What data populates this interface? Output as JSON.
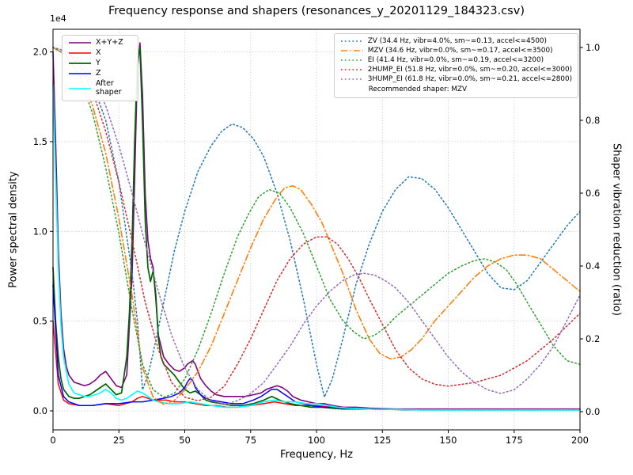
{
  "title": "Frequency response and shapers (resonances_y_20201129_184323.csv)",
  "axes": {
    "x": {
      "label": "Frequency, Hz",
      "lim": [
        0,
        200
      ],
      "tick_values": [
        0,
        25,
        50,
        75,
        100,
        125,
        150,
        175,
        200
      ],
      "tick_labels": [
        "0",
        "25",
        "50",
        "75",
        "100",
        "125",
        "150",
        "175",
        "200"
      ]
    },
    "y_left": {
      "label": "Power spectral density",
      "offset_text": "1e4",
      "lim": [
        -0.106,
        2.126
      ],
      "tick_values": [
        0,
        0.5,
        1,
        1.5,
        2
      ],
      "tick_labels": [
        "0.0",
        "0.5",
        "1.0",
        "1.5",
        "2.0"
      ]
    },
    "y_right": {
      "label": "Shaper vibration reduction (ratio)",
      "lim": [
        -0.05,
        1.05
      ],
      "tick_values": [
        0,
        0.2,
        0.4,
        0.6,
        0.8,
        1
      ],
      "tick_labels": [
        "0.0",
        "0.2",
        "0.4",
        "0.6",
        "0.8",
        "1.0"
      ]
    }
  },
  "legend_note": "Recommended shaper: MZV",
  "chart_data": {
    "type": "line",
    "title": "Frequency response and shapers (resonances_y_20201129_184323.csv)",
    "xlabel": "Frequency, Hz",
    "xlim": [
      0,
      200
    ],
    "left_ylabel": "Power spectral density",
    "left_scale": "1e4",
    "right_ylabel": "Shaper vibration reduction (ratio)",
    "grid": true,
    "series": [
      {
        "name": "X+Y+Z",
        "legend": "psd",
        "axis": "left",
        "color": "#800080",
        "style": "solid",
        "width": 1.6,
        "x": [
          0,
          1,
          2,
          3,
          4,
          5,
          6,
          8,
          10,
          12,
          14,
          16,
          18,
          20,
          22,
          24,
          26,
          28,
          30,
          31,
          32,
          33,
          34,
          35,
          36,
          37,
          38,
          39,
          40,
          42,
          44,
          46,
          48,
          50,
          51,
          52,
          53,
          54,
          55,
          56,
          58,
          60,
          62,
          65,
          68,
          70,
          73,
          76,
          79,
          81,
          83,
          85,
          87,
          89,
          91,
          94,
          97,
          100,
          103,
          106,
          110,
          115,
          120,
          130,
          140,
          160,
          180,
          200
        ],
        "y": [
          2.0,
          1.5,
          0.9,
          0.55,
          0.35,
          0.25,
          0.2,
          0.16,
          0.15,
          0.14,
          0.15,
          0.17,
          0.2,
          0.22,
          0.18,
          0.14,
          0.13,
          0.2,
          0.75,
          1.3,
          1.9,
          2.05,
          1.75,
          1.2,
          0.95,
          0.85,
          0.8,
          0.62,
          0.42,
          0.3,
          0.26,
          0.23,
          0.22,
          0.24,
          0.26,
          0.27,
          0.28,
          0.26,
          0.22,
          0.18,
          0.14,
          0.11,
          0.09,
          0.08,
          0.08,
          0.08,
          0.08,
          0.09,
          0.1,
          0.12,
          0.13,
          0.14,
          0.13,
          0.11,
          0.08,
          0.06,
          0.05,
          0.04,
          0.04,
          0.03,
          0.02,
          0.02,
          0.015,
          0.01,
          0.01,
          0.01,
          0.01,
          0.01
        ]
      },
      {
        "name": "X",
        "legend": "psd",
        "axis": "left",
        "color": "#ff0000",
        "style": "solid",
        "width": 1.5,
        "x": [
          0,
          2,
          4,
          6,
          10,
          15,
          20,
          25,
          30,
          32,
          34,
          36,
          38,
          40,
          43,
          46,
          50,
          54,
          58,
          62,
          66,
          70,
          75,
          80,
          84,
          88,
          92,
          96,
          100,
          105,
          110,
          120,
          140,
          160,
          180,
          200
        ],
        "y": [
          0.5,
          0.15,
          0.06,
          0.04,
          0.03,
          0.03,
          0.04,
          0.03,
          0.05,
          0.07,
          0.08,
          0.07,
          0.06,
          0.06,
          0.06,
          0.05,
          0.05,
          0.04,
          0.03,
          0.03,
          0.02,
          0.02,
          0.03,
          0.04,
          0.05,
          0.04,
          0.03,
          0.03,
          0.03,
          0.02,
          0.015,
          0.01,
          0.005,
          0.005,
          0.005,
          0.005
        ]
      },
      {
        "name": "Y",
        "legend": "psd",
        "axis": "left",
        "color": "#006400",
        "style": "solid",
        "width": 1.7,
        "x": [
          0,
          1,
          2,
          3,
          4,
          6,
          8,
          10,
          12,
          14,
          16,
          18,
          20,
          22,
          24,
          26,
          28,
          29,
          30,
          31,
          32,
          33,
          34,
          35,
          36,
          37,
          38,
          39,
          40,
          41,
          42,
          44,
          46,
          48,
          50,
          52,
          54,
          56,
          58,
          60,
          64,
          68,
          72,
          76,
          80,
          83,
          86,
          90,
          94,
          98,
          102,
          106,
          110,
          120,
          140,
          160,
          180,
          200
        ],
        "y": [
          0.8,
          0.5,
          0.3,
          0.18,
          0.12,
          0.08,
          0.07,
          0.07,
          0.08,
          0.09,
          0.11,
          0.13,
          0.15,
          0.12,
          0.09,
          0.1,
          0.3,
          0.55,
          0.95,
          1.5,
          1.95,
          2.02,
          1.6,
          1.05,
          0.8,
          0.72,
          0.78,
          0.65,
          0.4,
          0.3,
          0.26,
          0.23,
          0.2,
          0.16,
          0.12,
          0.1,
          0.11,
          0.09,
          0.06,
          0.05,
          0.04,
          0.03,
          0.03,
          0.04,
          0.06,
          0.08,
          0.06,
          0.04,
          0.03,
          0.02,
          0.02,
          0.015,
          0.01,
          0.01,
          0.005,
          0.005,
          0.005,
          0.005
        ]
      },
      {
        "name": "Z",
        "legend": "psd",
        "axis": "left",
        "color": "#0000ff",
        "style": "solid",
        "width": 1.5,
        "x": [
          0,
          2,
          4,
          6,
          10,
          15,
          20,
          25,
          30,
          34,
          38,
          42,
          45,
          48,
          50,
          51,
          52,
          53,
          54,
          56,
          58,
          60,
          64,
          68,
          72,
          76,
          79,
          81,
          83,
          85,
          87,
          89,
          92,
          95,
          98,
          102,
          106,
          110,
          120,
          140,
          160,
          180,
          200
        ],
        "y": [
          0.7,
          0.2,
          0.08,
          0.05,
          0.03,
          0.03,
          0.04,
          0.04,
          0.05,
          0.05,
          0.06,
          0.07,
          0.08,
          0.1,
          0.13,
          0.16,
          0.18,
          0.17,
          0.13,
          0.09,
          0.07,
          0.06,
          0.05,
          0.04,
          0.04,
          0.06,
          0.08,
          0.1,
          0.12,
          0.12,
          0.1,
          0.08,
          0.05,
          0.04,
          0.03,
          0.02,
          0.02,
          0.015,
          0.01,
          0.005,
          0.005,
          0.005,
          0.005
        ]
      },
      {
        "name": "After shaper",
        "legend": "psd",
        "axis": "left",
        "color": "#00ffff",
        "style": "solid",
        "width": 1.6,
        "x": [
          0,
          1,
          2,
          3,
          4,
          6,
          8,
          10,
          12,
          14,
          16,
          18,
          20,
          22,
          24,
          26,
          28,
          30,
          32,
          34,
          36,
          38,
          40,
          44,
          48,
          52,
          56,
          60,
          65,
          70,
          75,
          80,
          84,
          88,
          92,
          96,
          100,
          104,
          108,
          112,
          120,
          140,
          160,
          180,
          200
        ],
        "y": [
          1.82,
          1.3,
          0.8,
          0.48,
          0.3,
          0.15,
          0.1,
          0.09,
          0.08,
          0.08,
          0.09,
          0.1,
          0.12,
          0.1,
          0.07,
          0.06,
          0.07,
          0.09,
          0.11,
          0.1,
          0.08,
          0.06,
          0.05,
          0.04,
          0.04,
          0.05,
          0.04,
          0.03,
          0.02,
          0.02,
          0.03,
          0.05,
          0.06,
          0.05,
          0.05,
          0.04,
          0.04,
          0.03,
          0.02,
          0.015,
          0.01,
          0.005,
          0.005,
          0.005,
          0.005
        ]
      },
      {
        "name": "ZV",
        "label": "ZV (34.4 Hz, vibr=4.0%, sm~=0.13, accel<=4500)",
        "legend": "shaper",
        "axis": "right",
        "color": "#1f77b4",
        "style": "dotted",
        "width": 1.5,
        "x": [
          0,
          5,
          10,
          15,
          20,
          25,
          30,
          32,
          34,
          36,
          38,
          42,
          46,
          50,
          55,
          60,
          64,
          68,
          72,
          76,
          80,
          85,
          90,
          95,
          100,
          103,
          106,
          110,
          115,
          120,
          125,
          130,
          135,
          140,
          145,
          150,
          155,
          160,
          165,
          170,
          175,
          180,
          185,
          190,
          195,
          200
        ],
        "y": [
          1.0,
          0.99,
          0.96,
          0.9,
          0.8,
          0.63,
          0.38,
          0.25,
          0.06,
          0.1,
          0.16,
          0.3,
          0.44,
          0.55,
          0.66,
          0.73,
          0.77,
          0.79,
          0.78,
          0.75,
          0.7,
          0.6,
          0.47,
          0.31,
          0.13,
          0.04,
          0.09,
          0.2,
          0.35,
          0.46,
          0.55,
          0.61,
          0.645,
          0.64,
          0.61,
          0.56,
          0.5,
          0.44,
          0.38,
          0.34,
          0.335,
          0.36,
          0.41,
          0.46,
          0.51,
          0.55
        ]
      },
      {
        "name": "MZV",
        "label": "MZV (34.6 Hz, vibr=0.0%, sm~=0.17, accel<=3500)",
        "legend": "shaper",
        "axis": "right",
        "color": "#ff7f0e",
        "style": "dashdot",
        "width": 1.6,
        "x": [
          0,
          5,
          10,
          15,
          20,
          25,
          30,
          34,
          38,
          42,
          46,
          50,
          55,
          60,
          65,
          70,
          75,
          80,
          85,
          88,
          91,
          94,
          98,
          102,
          106,
          110,
          115,
          120,
          124,
          128,
          132,
          136,
          140,
          145,
          150,
          155,
          160,
          165,
          170,
          175,
          180,
          185,
          190,
          195,
          200
        ],
        "y": [
          1.0,
          0.98,
          0.93,
          0.84,
          0.71,
          0.53,
          0.32,
          0.12,
          0.04,
          0.02,
          0.03,
          0.06,
          0.11,
          0.18,
          0.27,
          0.36,
          0.45,
          0.53,
          0.59,
          0.615,
          0.62,
          0.61,
          0.57,
          0.52,
          0.45,
          0.38,
          0.28,
          0.2,
          0.16,
          0.145,
          0.15,
          0.17,
          0.2,
          0.25,
          0.29,
          0.33,
          0.37,
          0.4,
          0.42,
          0.43,
          0.43,
          0.42,
          0.39,
          0.36,
          0.33
        ]
      },
      {
        "name": "EI",
        "label": "EI (41.4 Hz, vibr=0.0%, sm~=0.19, accel<=3200)",
        "legend": "shaper",
        "axis": "right",
        "color": "#2ca02c",
        "style": "dotted",
        "width": 1.5,
        "x": [
          0,
          5,
          10,
          15,
          20,
          25,
          30,
          34,
          38,
          42,
          46,
          50,
          55,
          60,
          65,
          70,
          74,
          78,
          82,
          86,
          90,
          95,
          100,
          105,
          110,
          114,
          118,
          122,
          126,
          130,
          135,
          140,
          145,
          150,
          155,
          160,
          164,
          168,
          172,
          176,
          180,
          185,
          190,
          195,
          200
        ],
        "y": [
          1.0,
          0.98,
          0.92,
          0.82,
          0.67,
          0.49,
          0.28,
          0.13,
          0.06,
          0.04,
          0.05,
          0.09,
          0.17,
          0.27,
          0.38,
          0.48,
          0.54,
          0.59,
          0.61,
          0.6,
          0.56,
          0.49,
          0.4,
          0.31,
          0.25,
          0.22,
          0.2,
          0.21,
          0.23,
          0.26,
          0.29,
          0.32,
          0.35,
          0.38,
          0.4,
          0.415,
          0.42,
          0.41,
          0.39,
          0.35,
          0.3,
          0.24,
          0.18,
          0.14,
          0.13
        ]
      },
      {
        "name": "2HUMP_EI",
        "label": "2HUMP_EI (51.8 Hz, vibr=0.0%, sm~=0.20, accel<=3000)",
        "legend": "shaper",
        "axis": "right",
        "color": "#d62728",
        "style": "dotted",
        "width": 1.5,
        "x": [
          0,
          5,
          10,
          15,
          20,
          25,
          30,
          35,
          40,
          45,
          50,
          55,
          60,
          65,
          70,
          75,
          80,
          85,
          90,
          95,
          100,
          104,
          108,
          112,
          116,
          120,
          125,
          130,
          135,
          140,
          145,
          150,
          155,
          160,
          165,
          170,
          175,
          180,
          185,
          190,
          195,
          200
        ],
        "y": [
          1.0,
          0.99,
          0.95,
          0.88,
          0.77,
          0.63,
          0.47,
          0.3,
          0.17,
          0.08,
          0.04,
          0.03,
          0.04,
          0.07,
          0.13,
          0.2,
          0.28,
          0.36,
          0.42,
          0.46,
          0.48,
          0.48,
          0.46,
          0.42,
          0.37,
          0.31,
          0.24,
          0.17,
          0.12,
          0.09,
          0.075,
          0.07,
          0.075,
          0.08,
          0.09,
          0.1,
          0.12,
          0.14,
          0.17,
          0.2,
          0.235,
          0.27
        ]
      },
      {
        "name": "3HUMP_EI",
        "label": "3HUMP_EI (61.8 Hz, vibr=0.0%, sm~=0.21, accel<=2800)",
        "legend": "shaper",
        "axis": "right",
        "color": "#9467bd",
        "style": "dotted",
        "width": 1.5,
        "x": [
          0,
          5,
          10,
          15,
          20,
          25,
          30,
          35,
          40,
          45,
          50,
          55,
          60,
          65,
          70,
          75,
          80,
          85,
          90,
          95,
          100,
          105,
          110,
          114,
          118,
          122,
          126,
          130,
          135,
          140,
          145,
          150,
          155,
          160,
          165,
          170,
          175,
          180,
          185,
          190,
          195,
          200
        ],
        "y": [
          1.0,
          0.99,
          0.97,
          0.92,
          0.84,
          0.73,
          0.6,
          0.46,
          0.33,
          0.21,
          0.12,
          0.06,
          0.03,
          0.02,
          0.03,
          0.05,
          0.08,
          0.13,
          0.18,
          0.24,
          0.29,
          0.33,
          0.36,
          0.375,
          0.38,
          0.375,
          0.36,
          0.34,
          0.3,
          0.25,
          0.2,
          0.15,
          0.11,
          0.08,
          0.06,
          0.05,
          0.06,
          0.09,
          0.13,
          0.18,
          0.25,
          0.32
        ]
      }
    ]
  }
}
